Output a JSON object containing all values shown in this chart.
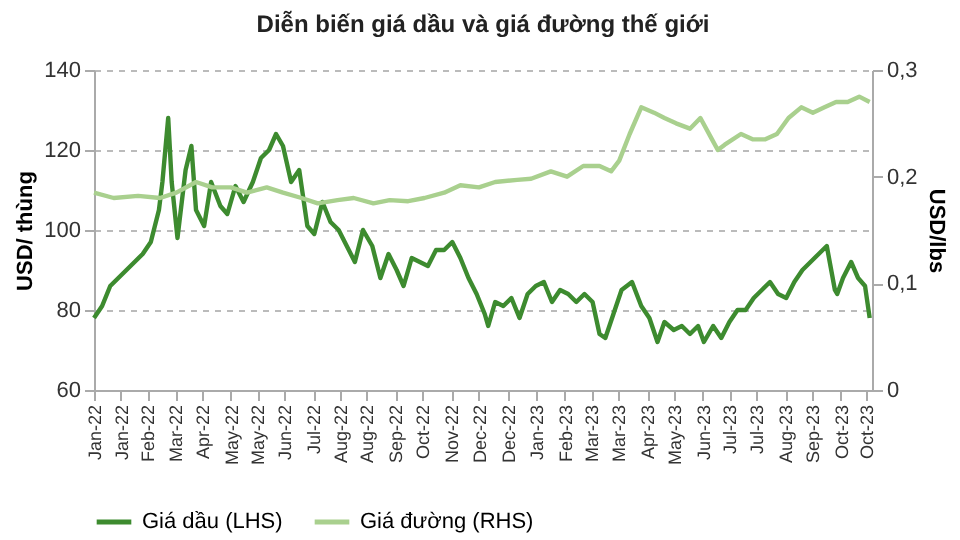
{
  "chart_data": {
    "type": "line",
    "title": "Diễn biến giá dầu và giá đường thế giới",
    "ylabel": "USD/ thùng",
    "y2label": "USD/lbs",
    "xlim": [
      "2022-01-03",
      "2023-11-05"
    ],
    "xticks": [
      {
        "value": "2022-01-03",
        "label": "Jan-22"
      },
      {
        "value": "2022-01-26",
        "label": "Jan-22"
      },
      {
        "value": "2022-02-18",
        "label": "Feb-22"
      },
      {
        "value": "2022-03-14",
        "label": "Mar-22"
      },
      {
        "value": "2022-04-06",
        "label": "Apr-22"
      },
      {
        "value": "2022-05-01",
        "label": "May-22"
      },
      {
        "value": "2022-05-24",
        "label": "May-22"
      },
      {
        "value": "2022-06-16",
        "label": "Jun-22"
      },
      {
        "value": "2022-07-11",
        "label": "Jul-22"
      },
      {
        "value": "2022-08-03",
        "label": "Aug-22"
      },
      {
        "value": "2022-08-26",
        "label": "Aug-22"
      },
      {
        "value": "2022-09-20",
        "label": "Sep-22"
      },
      {
        "value": "2022-10-13",
        "label": "Oct-22"
      },
      {
        "value": "2022-11-07",
        "label": "Nov-22"
      },
      {
        "value": "2022-12-01",
        "label": "Dec-22"
      },
      {
        "value": "2022-12-26",
        "label": "Dec-22"
      },
      {
        "value": "2023-01-19",
        "label": "Jan-23"
      },
      {
        "value": "2023-02-13",
        "label": "Feb-23"
      },
      {
        "value": "2023-03-08",
        "label": "Mar-23"
      },
      {
        "value": "2023-03-31",
        "label": "Mar-23"
      },
      {
        "value": "2023-04-25",
        "label": "Apr-23"
      },
      {
        "value": "2023-05-18",
        "label": "May-23"
      },
      {
        "value": "2023-06-12",
        "label": "Jun-23"
      },
      {
        "value": "2023-07-05",
        "label": "Jul-23"
      },
      {
        "value": "2023-07-28",
        "label": "Jul-23"
      },
      {
        "value": "2023-08-22",
        "label": "Aug-23"
      },
      {
        "value": "2023-09-14",
        "label": "Sep-23"
      },
      {
        "value": "2023-10-09",
        "label": "Oct-23"
      },
      {
        "value": "2023-10-31",
        "label": "Oct-23"
      }
    ],
    "ylim": [
      60,
      140
    ],
    "yticks": [
      60,
      80,
      100,
      120,
      140
    ],
    "y2lim": [
      0,
      0.3
    ],
    "y2ticks": [
      {
        "value": 0,
        "label": "0"
      },
      {
        "value": 0.1,
        "label": "0,1"
      },
      {
        "value": 0.2,
        "label": "0,2"
      },
      {
        "value": 0.3,
        "label": "0,3"
      }
    ],
    "grid": "y",
    "legend": "bottom",
    "marker": "none",
    "line_style": "solid",
    "series": [
      {
        "name": "Giá dầu (LHS)",
        "color": "#3d8b2f",
        "x": [
          "2022-01-03",
          "2022-01-10",
          "2022-01-17",
          "2022-01-24",
          "2022-01-31",
          "2022-02-07",
          "2022-02-14",
          "2022-02-21",
          "2022-02-28",
          "2022-03-03",
          "2022-03-08",
          "2022-03-11",
          "2022-03-16",
          "2022-03-23",
          "2022-03-28",
          "2022-04-01",
          "2022-04-08",
          "2022-04-14",
          "2022-04-22",
          "2022-04-28",
          "2022-05-05",
          "2022-05-12",
          "2022-05-20",
          "2022-05-27",
          "2022-06-03",
          "2022-06-09",
          "2022-06-15",
          "2022-06-22",
          "2022-06-29",
          "2022-07-06",
          "2022-07-12",
          "2022-07-19",
          "2022-07-26",
          "2022-08-02",
          "2022-08-09",
          "2022-08-16",
          "2022-08-23",
          "2022-08-31",
          "2022-09-07",
          "2022-09-14",
          "2022-09-21",
          "2022-09-27",
          "2022-10-04",
          "2022-10-11",
          "2022-10-18",
          "2022-10-25",
          "2022-11-01",
          "2022-11-08",
          "2022-11-15",
          "2022-11-22",
          "2022-11-29",
          "2022-12-06",
          "2022-12-09",
          "2022-12-15",
          "2022-12-22",
          "2022-12-29",
          "2023-01-05",
          "2023-01-12",
          "2023-01-19",
          "2023-01-26",
          "2023-02-02",
          "2023-02-09",
          "2023-02-16",
          "2023-02-23",
          "2023-03-02",
          "2023-03-09",
          "2023-03-15",
          "2023-03-20",
          "2023-03-27",
          "2023-04-03",
          "2023-04-12",
          "2023-04-20",
          "2023-04-27",
          "2023-05-04",
          "2023-05-10",
          "2023-05-18",
          "2023-05-25",
          "2023-06-01",
          "2023-06-08",
          "2023-06-13",
          "2023-06-21",
          "2023-06-28",
          "2023-07-05",
          "2023-07-12",
          "2023-07-19",
          "2023-07-26",
          "2023-08-02",
          "2023-08-09",
          "2023-08-16",
          "2023-08-23",
          "2023-08-30",
          "2023-09-06",
          "2023-09-13",
          "2023-09-20",
          "2023-09-27",
          "2023-10-04",
          "2023-10-06",
          "2023-10-11",
          "2023-10-18",
          "2023-10-24",
          "2023-10-30",
          "2023-11-03"
        ],
        "values": [
          78,
          81,
          86,
          88,
          90,
          92,
          94,
          97,
          105,
          112,
          128,
          112,
          98,
          115,
          121,
          105,
          101,
          112,
          106,
          104,
          111,
          107,
          112,
          118,
          120,
          124,
          121,
          112,
          115,
          101,
          99,
          107,
          102,
          100,
          96,
          92,
          100,
          96,
          88,
          94,
          90,
          86,
          93,
          92,
          91,
          95,
          95,
          97,
          93,
          88,
          84,
          79,
          76,
          82,
          81,
          83,
          78,
          84,
          86,
          87,
          82,
          85,
          84,
          82,
          84,
          82,
          74,
          73,
          79,
          85,
          87,
          81,
          78,
          72,
          77,
          75,
          76,
          74,
          76,
          72,
          76,
          73,
          77,
          80,
          80,
          83,
          85,
          87,
          84,
          83,
          87,
          90,
          92,
          94,
          96,
          85,
          84,
          88,
          92,
          88,
          86,
          78
        ]
      },
      {
        "name": "Giá đường (RHS)",
        "color": "#a9d08e",
        "axis": "y2",
        "x": [
          "2022-01-03",
          "2022-01-20",
          "2022-02-10",
          "2022-03-01",
          "2022-03-15",
          "2022-04-01",
          "2022-04-15",
          "2022-05-01",
          "2022-05-15",
          "2022-06-01",
          "2022-06-15",
          "2022-07-01",
          "2022-07-15",
          "2022-08-01",
          "2022-08-15",
          "2022-09-01",
          "2022-09-15",
          "2022-10-01",
          "2022-10-15",
          "2022-11-01",
          "2022-11-15",
          "2022-12-01",
          "2022-12-15",
          "2023-01-03",
          "2023-01-15",
          "2023-02-01",
          "2023-02-15",
          "2023-03-01",
          "2023-03-15",
          "2023-03-25",
          "2023-04-01",
          "2023-04-10",
          "2023-04-20",
          "2023-05-01",
          "2023-05-10",
          "2023-05-20",
          "2023-06-01",
          "2023-06-10",
          "2023-06-20",
          "2023-06-25",
          "2023-07-01",
          "2023-07-15",
          "2023-07-25",
          "2023-08-05",
          "2023-08-15",
          "2023-08-25",
          "2023-09-05",
          "2023-09-15",
          "2023-09-25",
          "2023-10-05",
          "2023-10-15",
          "2023-10-25",
          "2023-11-03"
        ],
        "values": [
          0.185,
          0.18,
          0.182,
          0.18,
          0.185,
          0.195,
          0.19,
          0.19,
          0.185,
          0.19,
          0.185,
          0.18,
          0.175,
          0.178,
          0.18,
          0.175,
          0.178,
          0.177,
          0.18,
          0.185,
          0.192,
          0.19,
          0.195,
          0.197,
          0.198,
          0.205,
          0.2,
          0.21,
          0.21,
          0.205,
          0.215,
          0.24,
          0.265,
          0.26,
          0.255,
          0.25,
          0.245,
          0.255,
          0.235,
          0.225,
          0.23,
          0.24,
          0.235,
          0.235,
          0.24,
          0.255,
          0.265,
          0.26,
          0.265,
          0.27,
          0.27,
          0.275,
          0.27
        ]
      }
    ]
  }
}
